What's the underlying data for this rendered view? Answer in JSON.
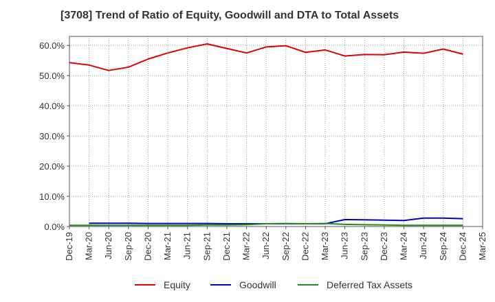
{
  "chart_data": {
    "type": "line",
    "title": "[3708]  Trend of Ratio of Equity, Goodwill and DTA to Total Assets",
    "xlabel": "",
    "ylabel": "",
    "ylim": [
      0,
      63
    ],
    "y_ticks": [
      "0.0%",
      "10.0%",
      "20.0%",
      "30.0%",
      "40.0%",
      "50.0%",
      "60.0%"
    ],
    "y_tick_values": [
      0,
      10,
      20,
      30,
      40,
      50,
      60
    ],
    "categories": [
      "Dec-19",
      "Mar-20",
      "Jun-20",
      "Sep-20",
      "Dec-20",
      "Mar-21",
      "Jun-21",
      "Sep-21",
      "Dec-21",
      "Mar-22",
      "Jun-22",
      "Sep-22",
      "Dec-22",
      "Mar-23",
      "Jun-23",
      "Sep-23",
      "Dec-23",
      "Mar-24",
      "Jun-24",
      "Sep-24",
      "Dec-24",
      "Mar-25"
    ],
    "grid": true,
    "legend_position": "bottom",
    "series": [
      {
        "name": "Equity",
        "color": "#e00000",
        "values": [
          54.3,
          53.5,
          51.7,
          52.8,
          55.5,
          57.5,
          59.2,
          60.5,
          59.0,
          57.5,
          59.5,
          59.9,
          57.7,
          58.5,
          56.5,
          57.0,
          56.9,
          57.8,
          57.4,
          58.8,
          57.1,
          null
        ]
      },
      {
        "name": "Goodwill",
        "color": "#0000cc",
        "values": [
          null,
          1.1,
          1.1,
          1.1,
          1.0,
          1.0,
          1.0,
          1.0,
          0.9,
          0.9,
          0.9,
          0.9,
          0.9,
          0.9,
          2.3,
          2.2,
          2.1,
          2.0,
          2.8,
          2.8,
          2.6,
          null
        ]
      },
      {
        "name": "Deferred Tax Assets",
        "color": "#228b22",
        "values": [
          0.4,
          0.4,
          0.4,
          0.4,
          0.4,
          0.4,
          0.4,
          0.5,
          0.5,
          0.6,
          0.9,
          1.0,
          0.9,
          1.0,
          0.7,
          0.6,
          0.5,
          0.4,
          0.4,
          0.4,
          0.4,
          null
        ]
      }
    ]
  }
}
